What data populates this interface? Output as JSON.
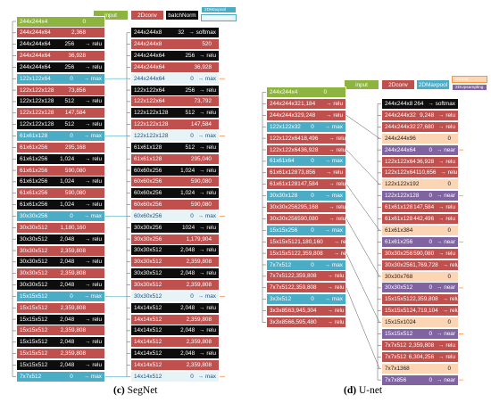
{
  "legend_segnet": {
    "input": "input",
    "conv": "2Dconv",
    "bn": "batchNorm",
    "maxpool": "2DMaxpool",
    "maxunpool": "2DMaxUnpool"
  },
  "legend_unet": {
    "input": "input",
    "conv": "2Dconv",
    "maxpool": "2DMaxpool",
    "concat": "concat",
    "upsampling": "2DUpsampling"
  },
  "segnet_encoder": [
    {
      "type": "input",
      "name": "244x244x4",
      "param": "0",
      "op": ""
    },
    {
      "type": "conv",
      "name": "244x244x64",
      "param": "2,368",
      "op": ""
    },
    {
      "type": "bn",
      "name": "244x244x64",
      "param": "256",
      "op": "→ relu"
    },
    {
      "type": "conv",
      "name": "244x244x64",
      "param": "36,928",
      "op": ""
    },
    {
      "type": "bn",
      "name": "244x244x64",
      "param": "256",
      "op": "→ relu"
    },
    {
      "type": "mp",
      "name": "122x122x64",
      "param": "0",
      "op": "→ max"
    },
    {
      "type": "conv",
      "name": "122x122x128",
      "param": "73,856",
      "op": ""
    },
    {
      "type": "bn",
      "name": "122x122x128",
      "param": "512",
      "op": "→ relu"
    },
    {
      "type": "conv",
      "name": "122x122x128",
      "param": "147,584",
      "op": ""
    },
    {
      "type": "bn",
      "name": "122x122x128",
      "param": "512",
      "op": "→ relu"
    },
    {
      "type": "mp",
      "name": "61x61x128",
      "param": "0",
      "op": "→ max"
    },
    {
      "type": "conv",
      "name": "61x61x256",
      "param": "295,168",
      "op": ""
    },
    {
      "type": "bn",
      "name": "61x61x256",
      "param": "1,024",
      "op": "→ relu"
    },
    {
      "type": "conv",
      "name": "61x61x256",
      "param": "590,080",
      "op": ""
    },
    {
      "type": "bn",
      "name": "61x61x256",
      "param": "1,024",
      "op": "→ relu"
    },
    {
      "type": "conv",
      "name": "61x61x256",
      "param": "590,080",
      "op": ""
    },
    {
      "type": "bn",
      "name": "61x61x256",
      "param": "1,024",
      "op": "→ relu"
    },
    {
      "type": "mp",
      "name": "30x30x256",
      "param": "0",
      "op": "→ max"
    },
    {
      "type": "conv",
      "name": "30x30x512",
      "param": "1,180,160",
      "op": ""
    },
    {
      "type": "bn",
      "name": "30x30x512",
      "param": "2,048",
      "op": "→ relu"
    },
    {
      "type": "conv",
      "name": "30x30x512",
      "param": "2,359,808",
      "op": ""
    },
    {
      "type": "bn",
      "name": "30x30x512",
      "param": "2,048",
      "op": "→ relu"
    },
    {
      "type": "conv",
      "name": "30x30x512",
      "param": "2,359,808",
      "op": ""
    },
    {
      "type": "bn",
      "name": "30x30x512",
      "param": "2,048",
      "op": "→ relu"
    },
    {
      "type": "mp",
      "name": "15x15x512",
      "param": "0",
      "op": "→ max"
    },
    {
      "type": "conv",
      "name": "15x15x512",
      "param": "2,359,808",
      "op": ""
    },
    {
      "type": "bn",
      "name": "15x15x512",
      "param": "2,048",
      "op": "→ relu"
    },
    {
      "type": "conv",
      "name": "15x15x512",
      "param": "2,359,808",
      "op": ""
    },
    {
      "type": "bn",
      "name": "15x15x512",
      "param": "2,048",
      "op": "→ relu"
    },
    {
      "type": "conv",
      "name": "15x15x512",
      "param": "2,359,808",
      "op": ""
    },
    {
      "type": "bn",
      "name": "15x15x512",
      "param": "2,048",
      "op": "→ relu"
    },
    {
      "type": "mp",
      "name": "7x7x512",
      "param": "0",
      "op": "→ max"
    }
  ],
  "segnet_decoder": [
    {
      "type": "bn",
      "name": "244x244x8",
      "param": "32",
      "op": "→ softmax"
    },
    {
      "type": "conv",
      "name": "244x244x8",
      "param": "520",
      "op": ""
    },
    {
      "type": "bn",
      "name": "244x244x64",
      "param": "256",
      "op": "→ relu"
    },
    {
      "type": "conv",
      "name": "244x244x64",
      "param": "36,928",
      "op": ""
    },
    {
      "type": "mp2",
      "name": "244x244x64",
      "param": "0",
      "op": "→ max"
    },
    {
      "type": "bn",
      "name": "122x122x64",
      "param": "256",
      "op": "→ relu"
    },
    {
      "type": "conv",
      "name": "122x122x64",
      "param": "73,792",
      "op": ""
    },
    {
      "type": "bn",
      "name": "122x122x128",
      "param": "512",
      "op": "→ relu"
    },
    {
      "type": "conv",
      "name": "122x122x128",
      "param": "147,584",
      "op": ""
    },
    {
      "type": "mp2",
      "name": "122x122x128",
      "param": "0",
      "op": "→ max"
    },
    {
      "type": "bn",
      "name": "61x61x128",
      "param": "512",
      "op": "→ relu"
    },
    {
      "type": "conv",
      "name": "61x61x128",
      "param": "295,040",
      "op": ""
    },
    {
      "type": "bn",
      "name": "60x60x256",
      "param": "1,024",
      "op": "→ relu"
    },
    {
      "type": "conv",
      "name": "60x60x256",
      "param": "590,080",
      "op": ""
    },
    {
      "type": "bn",
      "name": "60x60x256",
      "param": "1,024",
      "op": "→ relu"
    },
    {
      "type": "conv",
      "name": "60x60x256",
      "param": "590,080",
      "op": ""
    },
    {
      "type": "mp2",
      "name": "60x60x256",
      "param": "0",
      "op": "→ max"
    },
    {
      "type": "bn",
      "name": "30x30x256",
      "param": "1024",
      "op": "→ relu"
    },
    {
      "type": "conv",
      "name": "30x30x256",
      "param": "1,179,904",
      "op": ""
    },
    {
      "type": "bn",
      "name": "30x30x512",
      "param": "2,048",
      "op": "→ relu"
    },
    {
      "type": "conv",
      "name": "30x30x512",
      "param": "2,359,808",
      "op": ""
    },
    {
      "type": "bn",
      "name": "30x30x512",
      "param": "2,048",
      "op": "→ relu"
    },
    {
      "type": "conv",
      "name": "30x30x512",
      "param": "2,359,808",
      "op": ""
    },
    {
      "type": "mp2",
      "name": "30x30x512",
      "param": "0",
      "op": "→ max"
    },
    {
      "type": "bn",
      "name": "14x14x512",
      "param": "2,048",
      "op": "→ relu"
    },
    {
      "type": "conv",
      "name": "14x14x512",
      "param": "2,359,808",
      "op": ""
    },
    {
      "type": "bn",
      "name": "14x14x512",
      "param": "2,048",
      "op": "→ relu"
    },
    {
      "type": "conv",
      "name": "14x14x512",
      "param": "2,359,808",
      "op": ""
    },
    {
      "type": "bn",
      "name": "14x14x512",
      "param": "2,048",
      "op": "→ relu"
    },
    {
      "type": "conv",
      "name": "14x14x512",
      "param": "2,359,808",
      "op": ""
    },
    {
      "type": "mp2",
      "name": "14x14x512",
      "param": "0",
      "op": "→ max"
    }
  ],
  "unet_encoder": [
    {
      "type": "input",
      "name": "244x244x4",
      "param": "0",
      "op": ""
    },
    {
      "type": "conv",
      "name": "244x244x32",
      "param": "1,184",
      "op": "→ relu"
    },
    {
      "type": "conv",
      "name": "244x244x32",
      "param": "9,248",
      "op": "→ relu"
    },
    {
      "type": "mp",
      "name": "122x122x32",
      "param": "0",
      "op": "→ max"
    },
    {
      "type": "conv",
      "name": "122x122x64",
      "param": "18,496",
      "op": "→ relu"
    },
    {
      "type": "conv",
      "name": "122x122x64",
      "param": "36,928",
      "op": "→ relu"
    },
    {
      "type": "mp",
      "name": "61x61x64",
      "param": "0",
      "op": "→ max"
    },
    {
      "type": "conv",
      "name": "61x61x128",
      "param": "73,856",
      "op": "→ relu"
    },
    {
      "type": "conv",
      "name": "61x61x128",
      "param": "147,584",
      "op": "→ relu"
    },
    {
      "type": "mp",
      "name": "30x30x128",
      "param": "0",
      "op": "→ max"
    },
    {
      "type": "conv",
      "name": "30x30x256",
      "param": "295,168",
      "op": "→ relu"
    },
    {
      "type": "conv",
      "name": "30x30x256",
      "param": "590,080",
      "op": "→ relu"
    },
    {
      "type": "mp",
      "name": "15x15x256",
      "param": "0",
      "op": "→ max"
    },
    {
      "type": "conv",
      "name": "15x15x512",
      "param": "1,180,160",
      "op": "→ relu"
    },
    {
      "type": "conv",
      "name": "15x15x512",
      "param": "2,359,808",
      "op": "→ relu"
    },
    {
      "type": "mp",
      "name": "7x7x512",
      "param": "0",
      "op": "→ max"
    },
    {
      "type": "conv",
      "name": "7x7x512",
      "param": "2,359,808",
      "op": "→ relu"
    },
    {
      "type": "conv",
      "name": "7x7x512",
      "param": "2,359,808",
      "op": "→ relu"
    },
    {
      "type": "mp",
      "name": "3x3x512",
      "param": "0",
      "op": "→ max"
    },
    {
      "type": "conv",
      "name": "3x3x856",
      "param": "3,945,304",
      "op": "→ relu"
    },
    {
      "type": "conv",
      "name": "3x3x856",
      "param": "6,595,480",
      "op": "→ relu"
    }
  ],
  "unet_decoder": [
    {
      "type": "bn",
      "name": "244x244x8",
      "param": "264",
      "op": "→ softmax"
    },
    {
      "type": "conv",
      "name": "244x244x32",
      "param": "9,248",
      "op": "→ relu"
    },
    {
      "type": "conv",
      "name": "244x244x32",
      "param": "27,680",
      "op": "→ relu"
    },
    {
      "type": "cat",
      "name": "244x244x96",
      "param": "0",
      "op": ""
    },
    {
      "type": "up",
      "name": "244x244x64",
      "param": "0",
      "op": "→ near"
    },
    {
      "type": "conv",
      "name": "122x122x64",
      "param": "36,928",
      "op": "→ relu"
    },
    {
      "type": "conv",
      "name": "122x122x64",
      "param": "110,656",
      "op": "→ relu"
    },
    {
      "type": "cat",
      "name": "122x122x192",
      "param": "0",
      "op": ""
    },
    {
      "type": "up",
      "name": "122x122x128",
      "param": "0",
      "op": "→ near"
    },
    {
      "type": "conv",
      "name": "61x61x128",
      "param": "147,584",
      "op": "→ relu"
    },
    {
      "type": "conv",
      "name": "61x61x128",
      "param": "442,496",
      "op": "→ relu"
    },
    {
      "type": "cat",
      "name": "61x61x384",
      "param": "0",
      "op": ""
    },
    {
      "type": "up",
      "name": "61x61x256",
      "param": "0",
      "op": "→ near"
    },
    {
      "type": "conv",
      "name": "30x30x256",
      "param": "590,080",
      "op": "→ relu"
    },
    {
      "type": "conv",
      "name": "30x30x256",
      "param": "1,769,728",
      "op": "→ relu"
    },
    {
      "type": "cat",
      "name": "30x30x768",
      "param": "0",
      "op": ""
    },
    {
      "type": "up",
      "name": "30x30x512",
      "param": "0",
      "op": "→ near"
    },
    {
      "type": "conv",
      "name": "15x15x512",
      "param": "2,359,808",
      "op": "→ relu"
    },
    {
      "type": "conv",
      "name": "15x15x512",
      "param": "4,719,104",
      "op": "→ relu"
    },
    {
      "type": "cat",
      "name": "15x15x1024",
      "param": "0",
      "op": ""
    },
    {
      "type": "up",
      "name": "15x15x512",
      "param": "0",
      "op": "→ near"
    },
    {
      "type": "conv",
      "name": "7x7x512",
      "param": "2,359,808",
      "op": "→ relu"
    },
    {
      "type": "conv",
      "name": "7x7x512",
      "param": "6,304,256",
      "op": "→ relu"
    },
    {
      "type": "cat",
      "name": "7x7x1368",
      "param": "0",
      "op": ""
    },
    {
      "type": "up",
      "name": "7x7x856",
      "param": "0",
      "op": "→ near"
    }
  ],
  "captions": {
    "segnet_label": "(c)",
    "segnet_name": "SegNet",
    "unet_label": "(d)",
    "unet_name": "U-net"
  }
}
